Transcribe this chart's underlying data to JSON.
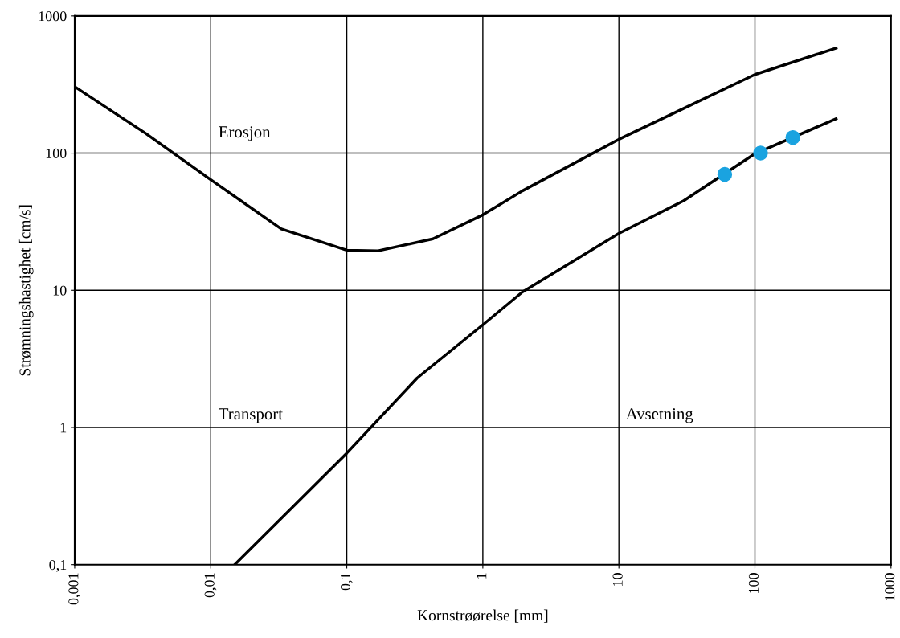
{
  "chart_data": {
    "type": "line",
    "xlabel": "Kornstrøørelse [mm]",
    "ylabel": "Strømningshastighet [cm/s]",
    "log": "xy",
    "grid": true,
    "marker": "none",
    "line_style": "solid",
    "xlim": [
      0.001,
      1000
    ],
    "ylim": [
      0.1,
      1000
    ],
    "xticks": [
      {
        "value": 0.001,
        "label": "0,001"
      },
      {
        "value": 0.01,
        "label": "0,01"
      },
      {
        "value": 0.1,
        "label": "0,1"
      },
      {
        "value": 1,
        "label": "1"
      },
      {
        "value": 10,
        "label": "10"
      },
      {
        "value": 100,
        "label": "100"
      },
      {
        "value": 1000,
        "label": "1000"
      }
    ],
    "yticks": [
      {
        "value": 0.1,
        "label": "0,1"
      },
      {
        "value": 1,
        "label": "1"
      },
      {
        "value": 10,
        "label": "10"
      },
      {
        "value": 100,
        "label": "100"
      },
      {
        "value": 1000,
        "label": "1000"
      }
    ],
    "series": [
      {
        "color": "#000000",
        "x": [
          0.001,
          0.0033,
          0.01,
          0.033,
          0.1,
          0.17,
          0.43,
          1,
          1.95,
          10,
          30,
          100,
          395
        ],
        "values": [
          305,
          140,
          64,
          28,
          19.6,
          19.4,
          23.7,
          35.5,
          53,
          126,
          212,
          374,
          583
        ]
      },
      {
        "color": "#000000",
        "x": [
          0.015,
          0.1,
          0.33,
          1,
          1.95,
          10,
          30,
          100,
          395
        ],
        "values": [
          0.1,
          0.65,
          2.3,
          5.6,
          9.7,
          26,
          45,
          99,
          178
        ]
      },
      {
        "type": "scatter",
        "color": "#1aa3e0",
        "marker": "circle",
        "x": [
          60,
          110,
          190
        ],
        "values": [
          70,
          100,
          130
        ]
      }
    ],
    "annotations": [
      "Erosjon",
      "Transport",
      "Avsetning"
    ]
  }
}
